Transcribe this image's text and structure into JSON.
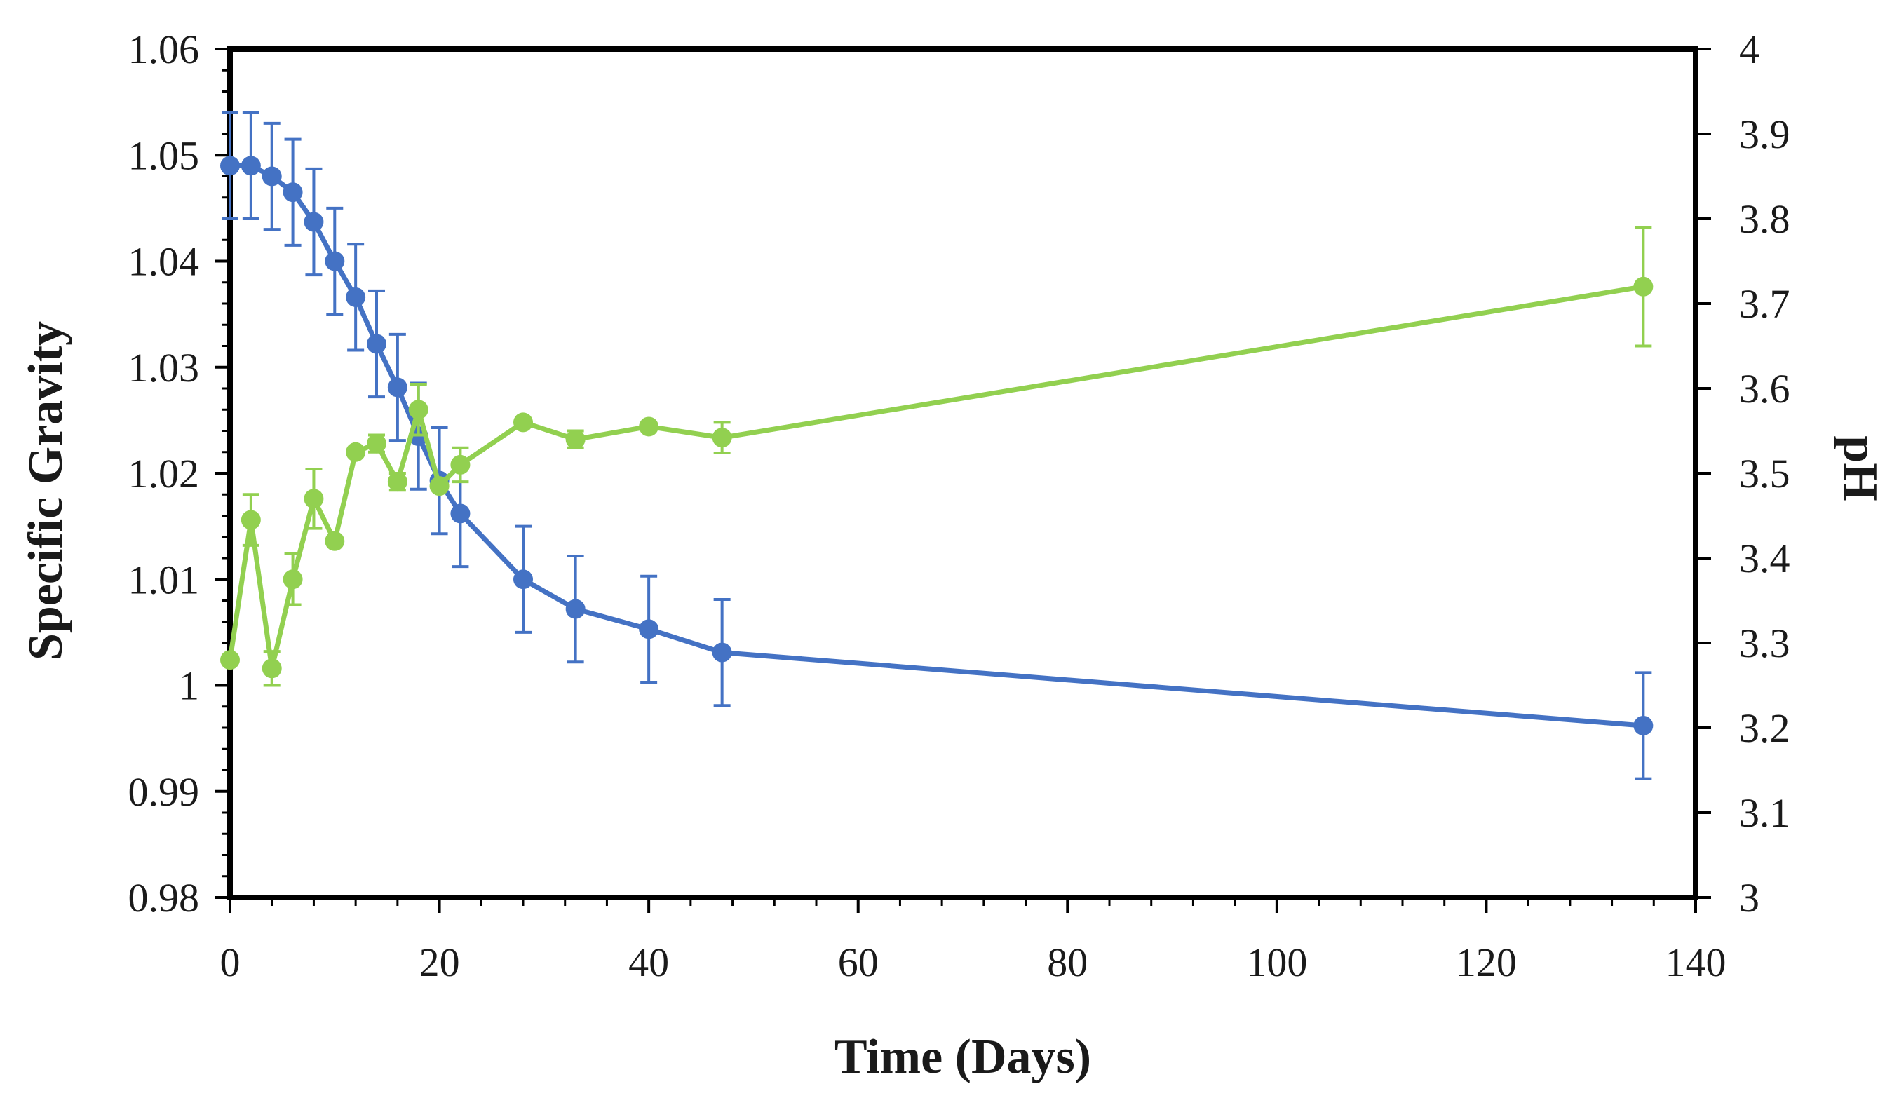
{
  "chart_data": {
    "type": "line",
    "title": "",
    "xlabel": "Time (Days)",
    "ylabel": "Specific Gravity",
    "y2label": "pH",
    "xlim": [
      0,
      140
    ],
    "ylim": [
      0.98,
      1.06
    ],
    "y2lim": [
      3,
      4
    ],
    "x_ticks": [
      "0",
      "20",
      "40",
      "60",
      "80",
      "100",
      "120",
      "140"
    ],
    "y_ticks": [
      "0.98",
      "0.99",
      "1",
      "1.01",
      "1.02",
      "1.03",
      "1.04",
      "1.05",
      "1.06"
    ],
    "y2_ticks": [
      "3",
      "3.1",
      "3.2",
      "3.3",
      "3.4",
      "3.5",
      "3.6",
      "3.7",
      "3.8",
      "3.9",
      "4"
    ],
    "grid": false,
    "legend": "none",
    "series": [
      {
        "axis": "left",
        "color": "#4472C4",
        "marker": "circle",
        "points": [
          {
            "x": 0,
            "y": 1.049,
            "err": 0.005
          },
          {
            "x": 2,
            "y": 1.049,
            "err": 0.005
          },
          {
            "x": 4,
            "y": 1.048,
            "err": 0.005
          },
          {
            "x": 6,
            "y": 1.0465,
            "err": 0.005
          },
          {
            "x": 8,
            "y": 1.0437,
            "err": 0.005
          },
          {
            "x": 10,
            "y": 1.04,
            "err": 0.005
          },
          {
            "x": 12,
            "y": 1.0366,
            "err": 0.005
          },
          {
            "x": 14,
            "y": 1.0322,
            "err": 0.005
          },
          {
            "x": 16,
            "y": 1.0281,
            "err": 0.005
          },
          {
            "x": 18,
            "y": 1.0235,
            "err": 0.005
          },
          {
            "x": 20,
            "y": 1.0193,
            "err": 0.005
          },
          {
            "x": 22,
            "y": 1.0162,
            "err": 0.005
          },
          {
            "x": 28,
            "y": 1.01,
            "err": 0.005
          },
          {
            "x": 33,
            "y": 1.0072,
            "err": 0.005
          },
          {
            "x": 40,
            "y": 1.0053,
            "err": 0.005
          },
          {
            "x": 47,
            "y": 1.0031,
            "err": 0.005
          },
          {
            "x": 135,
            "y": 0.9962,
            "err": 0.005
          }
        ]
      },
      {
        "axis": "right",
        "color": "#92D050",
        "marker": "circle",
        "points": [
          {
            "x": 0,
            "y": 3.28,
            "err": 0.0
          },
          {
            "x": 2,
            "y": 3.445,
            "err": 0.03
          },
          {
            "x": 4,
            "y": 3.27,
            "err": 0.02
          },
          {
            "x": 6,
            "y": 3.375,
            "err": 0.03
          },
          {
            "x": 8,
            "y": 3.47,
            "err": 0.035
          },
          {
            "x": 10,
            "y": 3.42,
            "err": 0.0
          },
          {
            "x": 12,
            "y": 3.525,
            "err": 0.0
          },
          {
            "x": 14,
            "y": 3.535,
            "err": 0.01
          },
          {
            "x": 16,
            "y": 3.49,
            "err": 0.01
          },
          {
            "x": 18,
            "y": 3.575,
            "err": 0.03
          },
          {
            "x": 20,
            "y": 3.485,
            "err": 0.0
          },
          {
            "x": 22,
            "y": 3.51,
            "err": 0.02
          },
          {
            "x": 28,
            "y": 3.56,
            "err": 0.0
          },
          {
            "x": 33,
            "y": 3.54,
            "err": 0.01
          },
          {
            "x": 40,
            "y": 3.555,
            "err": 0.0
          },
          {
            "x": 47,
            "y": 3.542,
            "err": 0.018
          },
          {
            "x": 135,
            "y": 3.72,
            "err": 0.07
          }
        ]
      }
    ]
  }
}
